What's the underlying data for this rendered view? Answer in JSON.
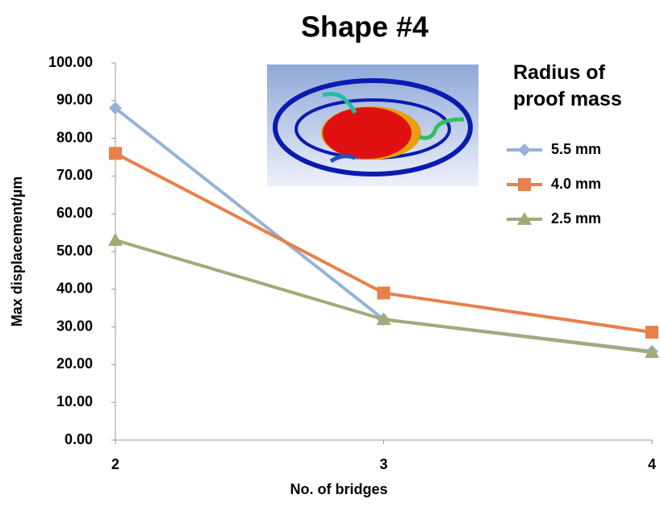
{
  "chart_data": {
    "type": "line",
    "title": "Shape #4",
    "x_label": "No. of bridges",
    "y_label": "Max displacement/µm",
    "legend_title": "Radius of proof mass",
    "legend": "top-right",
    "x": [
      2,
      3,
      4
    ],
    "xlim": [
      2,
      4
    ],
    "xticks": [
      2,
      3,
      4
    ],
    "ylim": [
      0,
      100
    ],
    "yticks": [
      {
        "value": 0,
        "label": "0.00"
      },
      {
        "value": 10,
        "label": "10.00"
      },
      {
        "value": 20,
        "label": "20.00"
      },
      {
        "value": 30,
        "label": "30.00"
      },
      {
        "value": 40,
        "label": "40.00"
      },
      {
        "value": 50,
        "label": "50.00"
      },
      {
        "value": 60,
        "label": "60.00"
      },
      {
        "value": 70,
        "label": "70.00"
      },
      {
        "value": 80,
        "label": "80.00"
      },
      {
        "value": 90,
        "label": "90.00"
      },
      {
        "value": 100,
        "label": "100.00"
      }
    ],
    "grid": false,
    "series": [
      {
        "name": "5.5 mm",
        "color": "#95b3d7",
        "marker": "diamond",
        "values": [
          88,
          32,
          23.5
        ]
      },
      {
        "name": "4.0 mm",
        "color": "#e8804a",
        "marker": "square",
        "values": [
          76,
          39,
          28.6
        ]
      },
      {
        "name": "2.5 mm",
        "color": "#a2aa78",
        "marker": "triangle",
        "values": [
          53,
          32,
          23.3
        ]
      }
    ]
  }
}
